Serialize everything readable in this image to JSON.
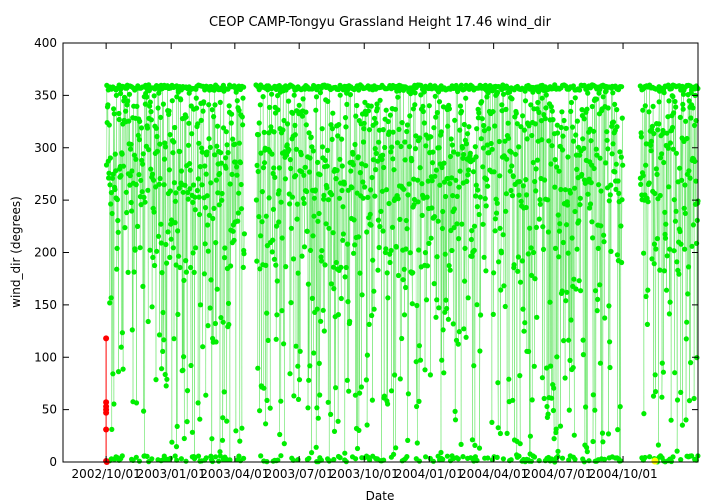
{
  "chart_data": {
    "type": "scatter",
    "title": "CEOP CAMP-Tongyu Grassland Height 17.46 wind_dir",
    "xlabel": "Date",
    "ylabel": "wind_dir (degrees)",
    "x_ticks": [
      "2002/10/01",
      "2003/01/01",
      "2003/04/01",
      "2003/07/01",
      "2003/10/01",
      "2004/01/01",
      "2004/04/01",
      "2004/07/01",
      "2004/10/01"
    ],
    "xlim": [
      "2002/08/01",
      "2005/01/15"
    ],
    "ylim": [
      0,
      400
    ],
    "y_ticks": [
      0,
      50,
      100,
      150,
      200,
      250,
      300,
      350,
      400
    ],
    "gaps": [
      [
        "2003/04/15",
        "2003/05/01"
      ],
      [
        "2004/10/01",
        "2004/10/25"
      ]
    ],
    "series": [
      {
        "color": "#00ff00",
        "point_color": "#00ee00",
        "description_range": [
          "2002/10/01",
          "2005/01/15"
        ],
        "value_range": [
          0,
          360
        ]
      },
      {
        "color": "#ff0000",
        "points": [
          {
            "x": "2002/10/01",
            "y": 118
          },
          {
            "x": "2002/10/01",
            "y": 57
          },
          {
            "x": "2002/10/01",
            "y": 53
          },
          {
            "x": "2002/10/01",
            "y": 50
          },
          {
            "x": "2002/10/01",
            "y": 47
          },
          {
            "x": "2002/10/01",
            "y": 31
          },
          {
            "x": "2002/10/01",
            "y": 1
          },
          {
            "x": "2002/10/02",
            "y": 0
          }
        ]
      },
      {
        "color": "#ffff00",
        "points": [
          {
            "x": "2004/11/15",
            "y": 1
          }
        ]
      }
    ]
  },
  "colors": {
    "axis": "#000000",
    "background": "#ffffff"
  }
}
